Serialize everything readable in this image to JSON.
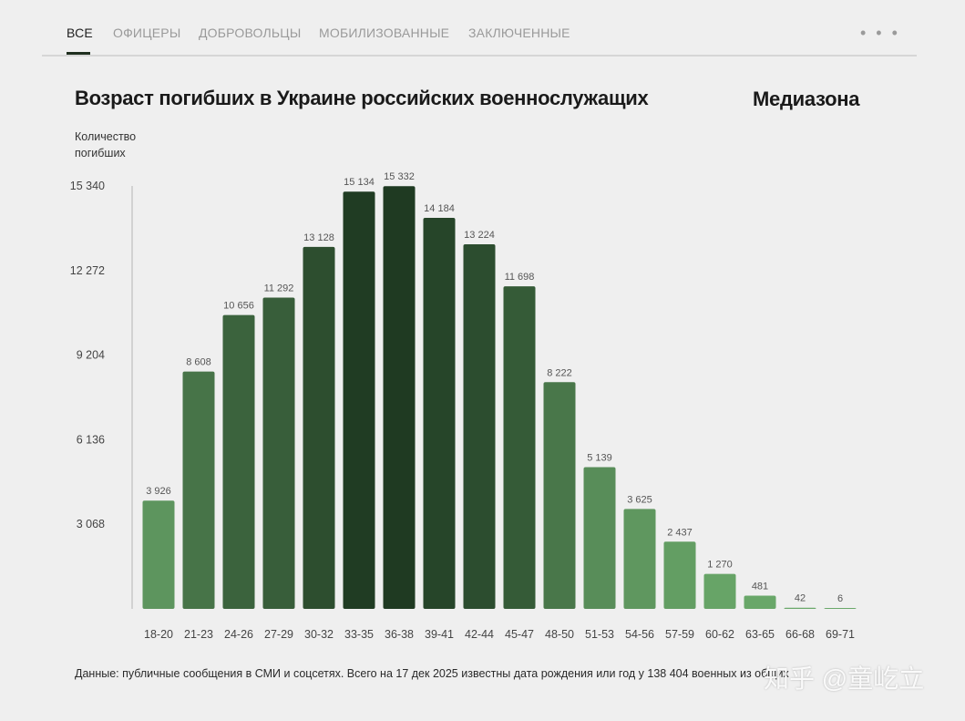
{
  "tabs": [
    {
      "label": "ВСЕ",
      "active": true
    },
    {
      "label": "ОФИЦЕРЫ",
      "active": false
    },
    {
      "label": "ДОБРОВОЛЬЦЫ",
      "active": false
    },
    {
      "label": "МОБИЛИЗОВАННЫЕ",
      "active": false
    },
    {
      "label": "ЗАКЛЮЧЕННЫЕ",
      "active": false
    }
  ],
  "more_label": "• • •",
  "brand": "Медиазона",
  "footnote": "Данные: публичные сообщения в СМИ и соцсетях. Всего на 17 дек 2025 известны дата рождения или год у 138 404 военных из общих",
  "watermark": "知乎 @童屹立",
  "chart_data": {
    "type": "bar",
    "title": "Возраст погибших в Украине российских военнослужащих",
    "ylabel": "Количество погибших",
    "xlabel": "",
    "ylim": [
      0,
      15340
    ],
    "yticks": [
      3068,
      6136,
      9204,
      12272,
      15340
    ],
    "ytick_labels": [
      "3 068",
      "6 136",
      "9 204",
      "12 272",
      "15 340"
    ],
    "categories": [
      "18-20",
      "21-23",
      "24-26",
      "27-29",
      "30-32",
      "33-35",
      "36-38",
      "39-41",
      "42-44",
      "45-47",
      "48-50",
      "51-53",
      "54-56",
      "57-59",
      "60-62",
      "63-65",
      "66-68",
      "69-71"
    ],
    "values": [
      3926,
      8608,
      10656,
      11292,
      13128,
      15134,
      15332,
      14184,
      13224,
      11698,
      8222,
      5139,
      3625,
      2437,
      1270,
      481,
      42,
      6
    ],
    "value_labels": [
      "3 926",
      "8 608",
      "10 656",
      "11 292",
      "13 128",
      "15 134",
      "15 332",
      "14 184",
      "13 224",
      "11 698",
      "8 222",
      "5 139",
      "3 625",
      "2 437",
      "1 270",
      "481",
      "42",
      "6"
    ],
    "color_light": "#6aa86a",
    "color_dark": "#1f3a22",
    "grid": false
  }
}
